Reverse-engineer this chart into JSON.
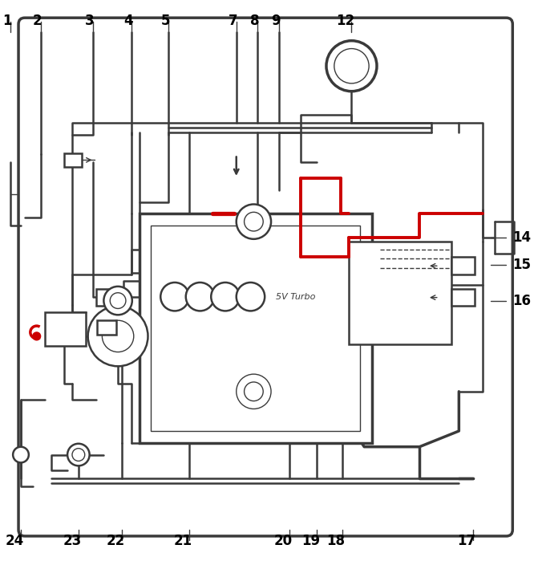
{
  "bg_color": "#ffffff",
  "line_color": "#3a3a3a",
  "red_color": "#cc0000",
  "label_color": "#000000",
  "fig_width": 6.66,
  "fig_height": 6.99,
  "lw_main": 1.8,
  "lw_thick": 2.5,
  "lw_thin": 1.0,
  "lw_red": 2.8,
  "label_fs": 12,
  "top_labels": {
    "1": 0.018,
    "2": 0.075,
    "3": 0.175,
    "4": 0.248,
    "5": 0.318,
    "7": 0.448,
    "8": 0.488,
    "9": 0.528,
    "12": 0.668
  },
  "bottom_labels": {
    "24": 0.038,
    "23": 0.148,
    "22": 0.23,
    "21": 0.358,
    "20": 0.548,
    "19": 0.6,
    "18": 0.648,
    "17": 0.898
  },
  "right_labels": {
    "14": 0.43,
    "15": 0.37,
    "16": 0.31
  }
}
